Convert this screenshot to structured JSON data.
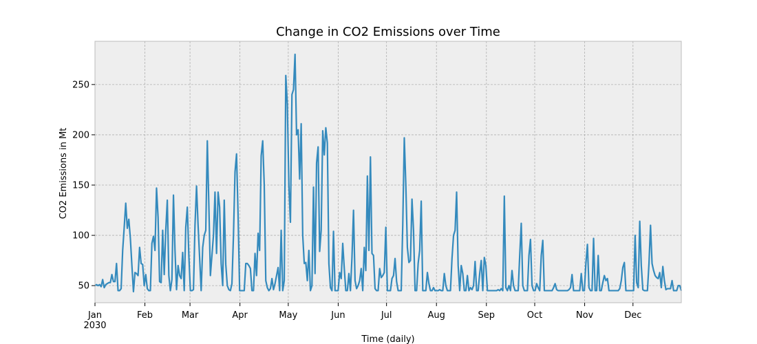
{
  "chart_data": {
    "type": "line",
    "title": "Change in CO2 Emissions over Time",
    "xlabel": "Time (daily)",
    "ylabel": "CO2 Emissions in Mt",
    "x_start": "2030-01-01",
    "x_end": "2030-12-31",
    "x_tick_labels": [
      "Jan",
      "Feb",
      "Mar",
      "Apr",
      "May",
      "Jun",
      "Jul",
      "Aug",
      "Sep",
      "Oct",
      "Nov",
      "Dec"
    ],
    "x_tick_year": "2030",
    "y_ticks": [
      50,
      100,
      150,
      200,
      250
    ],
    "ylim": [
      33,
      293
    ],
    "grid": true,
    "line_color": "#348abd",
    "background_color": "#eeeeee",
    "series": [
      {
        "values": [
          50,
          51,
          50,
          51,
          49,
          56,
          48,
          51,
          52,
          53,
          53,
          61,
          54,
          54,
          72,
          45,
          45,
          47,
          85,
          108,
          132,
          107,
          116,
          97,
          70,
          44,
          63,
          62,
          60,
          88,
          72,
          71,
          50,
          61,
          47,
          45,
          45,
          92,
          99,
          85,
          147,
          118,
          54,
          53,
          105,
          61,
          105,
          135,
          60,
          45,
          56,
          140,
          85,
          46,
          70,
          60,
          57,
          83,
          45,
          108,
          128,
          80,
          45,
          45,
          46,
          110,
          149,
          110,
          78,
          45,
          88,
          100,
          105,
          194,
          130,
          60,
          80,
          100,
          143,
          82,
          143,
          128,
          72,
          50,
          135,
          71,
          50,
          46,
          45,
          52,
          100,
          163,
          181,
          120,
          45,
          45,
          45,
          45,
          72,
          72,
          70,
          67,
          45,
          45,
          82,
          60,
          102,
          85,
          179,
          194,
          150,
          55,
          48,
          45,
          47,
          57,
          46,
          52,
          60,
          68,
          45,
          105,
          45,
          55,
          259,
          230,
          150,
          113,
          240,
          245,
          280,
          200,
          205,
          156,
          211,
          100,
          72,
          73,
          55,
          85,
          45,
          50,
          148,
          62,
          172,
          188,
          84,
          105,
          204,
          180,
          207,
          192,
          72,
          48,
          45,
          104,
          45,
          45,
          45,
          63,
          57,
          92,
          67,
          45,
          45,
          62,
          45,
          78,
          125,
          55,
          47,
          50,
          55,
          67,
          45,
          88,
          65,
          159,
          85,
          178,
          82,
          80,
          47,
          45,
          45,
          67,
          58,
          60,
          63,
          108,
          45,
          45,
          45,
          57,
          60,
          77,
          54,
          45,
          45,
          45,
          110,
          197,
          150,
          88,
          73,
          75,
          136,
          105,
          45,
          45,
          72,
          85,
          134,
          45,
          45,
          45,
          63,
          52,
          45,
          45,
          48,
          45,
          45,
          45,
          46,
          45,
          45,
          62,
          50,
          45,
          45,
          45,
          77,
          100,
          105,
          143,
          70,
          45,
          70,
          62,
          45,
          45,
          60,
          45,
          48,
          46,
          50,
          74,
          45,
          45,
          62,
          75,
          45,
          78,
          70,
          45,
          45,
          45,
          45,
          45,
          45,
          45,
          46,
          45,
          47,
          45,
          139,
          48,
          45,
          50,
          45,
          65,
          50,
          45,
          45,
          45,
          80,
          112,
          50,
          45,
          45,
          45,
          80,
          96,
          50,
          45,
          45,
          52,
          48,
          45,
          80,
          95,
          45,
          45,
          45,
          45,
          45,
          45,
          48,
          52,
          46,
          45,
          45,
          45,
          45,
          45,
          45,
          45,
          46,
          48,
          61,
          45,
          45,
          45,
          45,
          45,
          62,
          45,
          45,
          72,
          91,
          48,
          45,
          45,
          97,
          45,
          45,
          80,
          45,
          45,
          53,
          60,
          55,
          57,
          45,
          45,
          45,
          45,
          45,
          45,
          45,
          47,
          55,
          68,
          73,
          45,
          45,
          45,
          45,
          45,
          45,
          100,
          53,
          48,
          114,
          70,
          46,
          45,
          45,
          45,
          72,
          110,
          72,
          65,
          60,
          58,
          57,
          63,
          48,
          69,
          55,
          46,
          47,
          47,
          47,
          55,
          45,
          45,
          45,
          50,
          50,
          45
        ]
      }
    ]
  }
}
